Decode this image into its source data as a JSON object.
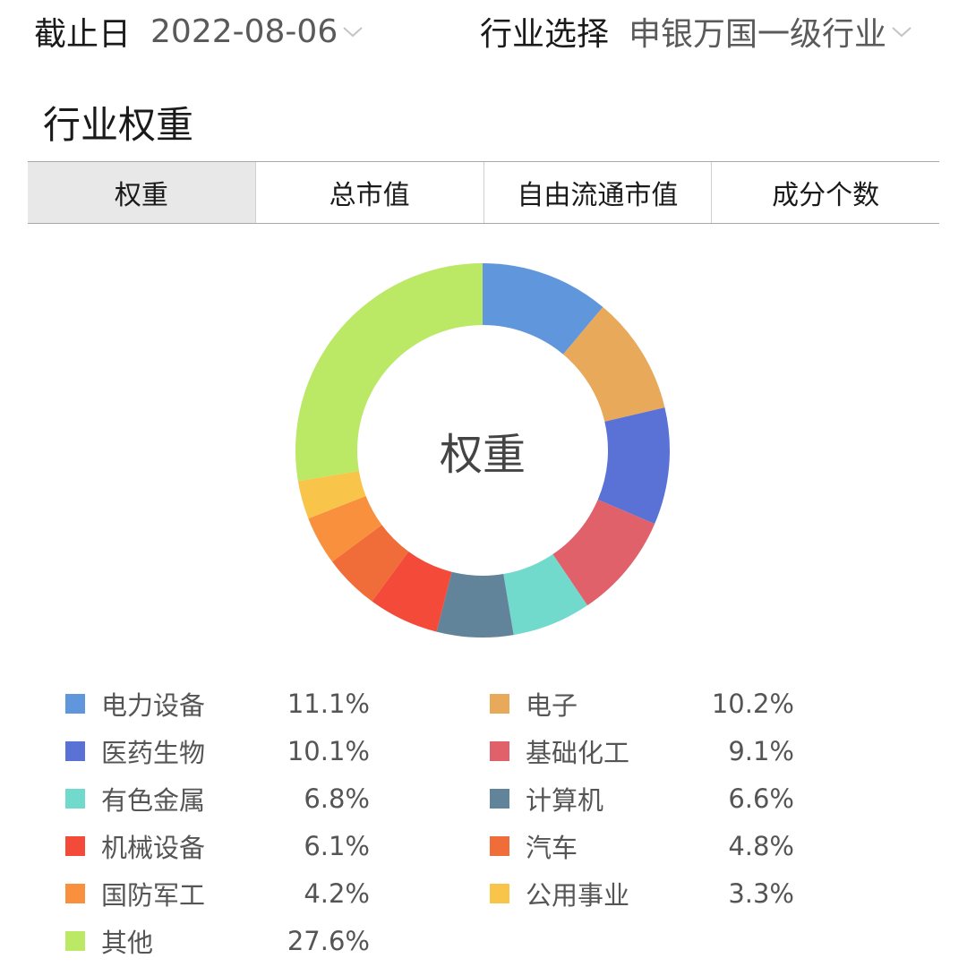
{
  "header": {
    "date_filter": {
      "label": "截止日",
      "value": "2022-08-06",
      "icon": "chevron-down-icon"
    },
    "industry_filter": {
      "label": "行业选择",
      "value": "申银万国一级行业",
      "icon": "chevron-down-icon"
    }
  },
  "section_title": "行业权重",
  "tabs": [
    {
      "label": "权重",
      "active": true
    },
    {
      "label": "总市值",
      "active": false
    },
    {
      "label": "自由流通市值",
      "active": false
    },
    {
      "label": "成分个数",
      "active": false
    }
  ],
  "chart": {
    "center_label": "权重"
  },
  "legend": [
    {
      "name": "电力设备",
      "value": "11.1%",
      "color": "#6096dc"
    },
    {
      "name": "电子",
      "value": "10.2%",
      "color": "#e9a95a"
    },
    {
      "name": "医药生物",
      "value": "10.1%",
      "color": "#5a72d6"
    },
    {
      "name": "基础化工",
      "value": "9.1%",
      "color": "#e0616a"
    },
    {
      "name": "有色金属",
      "value": "6.8%",
      "color": "#72d9cd"
    },
    {
      "name": "计算机",
      "value": "6.6%",
      "color": "#62849a"
    },
    {
      "name": "机械设备",
      "value": "6.1%",
      "color": "#f34a3a"
    },
    {
      "name": "汽车",
      "value": "4.8%",
      "color": "#f06c38"
    },
    {
      "name": "国防军工",
      "value": "4.2%",
      "color": "#f9903e"
    },
    {
      "name": "公用事业",
      "value": "3.3%",
      "color": "#f9c44a"
    },
    {
      "name": "其他",
      "value": "27.6%",
      "color": "#bbe865"
    }
  ],
  "chart_data": {
    "type": "pie",
    "subtype": "donut",
    "title": "行业权重",
    "center_label": "权重",
    "categories": [
      "电力设备",
      "电子",
      "医药生物",
      "基础化工",
      "有色金属",
      "计算机",
      "机械设备",
      "汽车",
      "国防军工",
      "公用事业",
      "其他"
    ],
    "values": [
      11.1,
      10.2,
      10.1,
      9.1,
      6.8,
      6.6,
      6.1,
      4.8,
      4.2,
      3.3,
      27.6
    ],
    "unit": "%",
    "colors": [
      "#6096dc",
      "#e9a95a",
      "#5a72d6",
      "#e0616a",
      "#72d9cd",
      "#62849a",
      "#f34a3a",
      "#f06c38",
      "#f9903e",
      "#f9c44a",
      "#bbe865"
    ],
    "start_angle": "12 o'clock, clockwise",
    "legend_position": "bottom, two columns"
  }
}
